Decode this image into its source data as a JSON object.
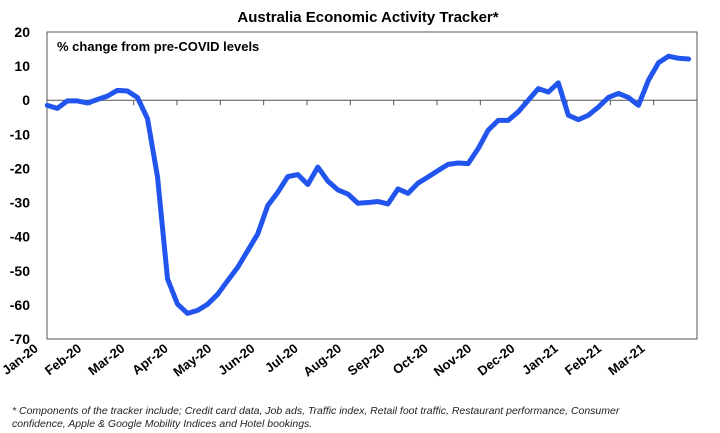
{
  "chart_data": {
    "type": "line",
    "title": "Australia Economic Activity Tracker*",
    "subtitle": "% change from pre-COVID levels",
    "xlabel": "",
    "ylabel": "% change from pre-COVID levels",
    "ylim": [
      -70,
      20
    ],
    "yticks": [
      20,
      10,
      0,
      -10,
      -20,
      -30,
      -40,
      -50,
      -60,
      -70
    ],
    "xtick_labels": [
      "Jan-20",
      "Feb-20",
      "Mar-20",
      "Apr-20",
      "May-20",
      "Jun-20",
      "Jul-20",
      "Aug-20",
      "Sep-20",
      "Oct-20",
      "Nov-20",
      "Dec-20",
      "Jan-21",
      "Feb-21",
      "Mar-21"
    ],
    "x_unit": "weekly observations starting Jan-20",
    "grid": false,
    "series": [
      {
        "name": "Economic Activity Tracker",
        "color": "#2255ee",
        "values": [
          -1.5,
          -2.4,
          -0.2,
          -0.2,
          -0.8,
          0.2,
          1.2,
          2.9,
          2.7,
          0.8,
          -5.4,
          -22.5,
          -52.4,
          -59.8,
          -62.5,
          -61.6,
          -59.8,
          -56.9,
          -52.9,
          -49,
          -44.1,
          -39.2,
          -30.9,
          -27,
          -22.4,
          -21.8,
          -24.7,
          -19.6,
          -23.7,
          -26.3,
          -27.5,
          -30.2,
          -30,
          -29.7,
          -30.4,
          -26,
          -27.3,
          -24.3,
          -22.5,
          -20.6,
          -18.8,
          -18.4,
          -18.6,
          -14.2,
          -8.8,
          -5.9,
          -5.9,
          -3.4,
          0,
          3.4,
          2.4,
          5.1,
          -4.4,
          -5.7,
          -4.4,
          -2,
          0.8,
          2,
          0.8,
          -1.5,
          5.9,
          11,
          12.9,
          12.3,
          12.1
        ]
      }
    ],
    "footnote_line1": "* Components of the tracker include; Credit card data, Job ads, Traffic index, Retail foot traffic, Restaurant performance, Consumer",
    "footnote_line2": "confidence, Apple & Google Mobility Indices and Hotel bookings."
  }
}
